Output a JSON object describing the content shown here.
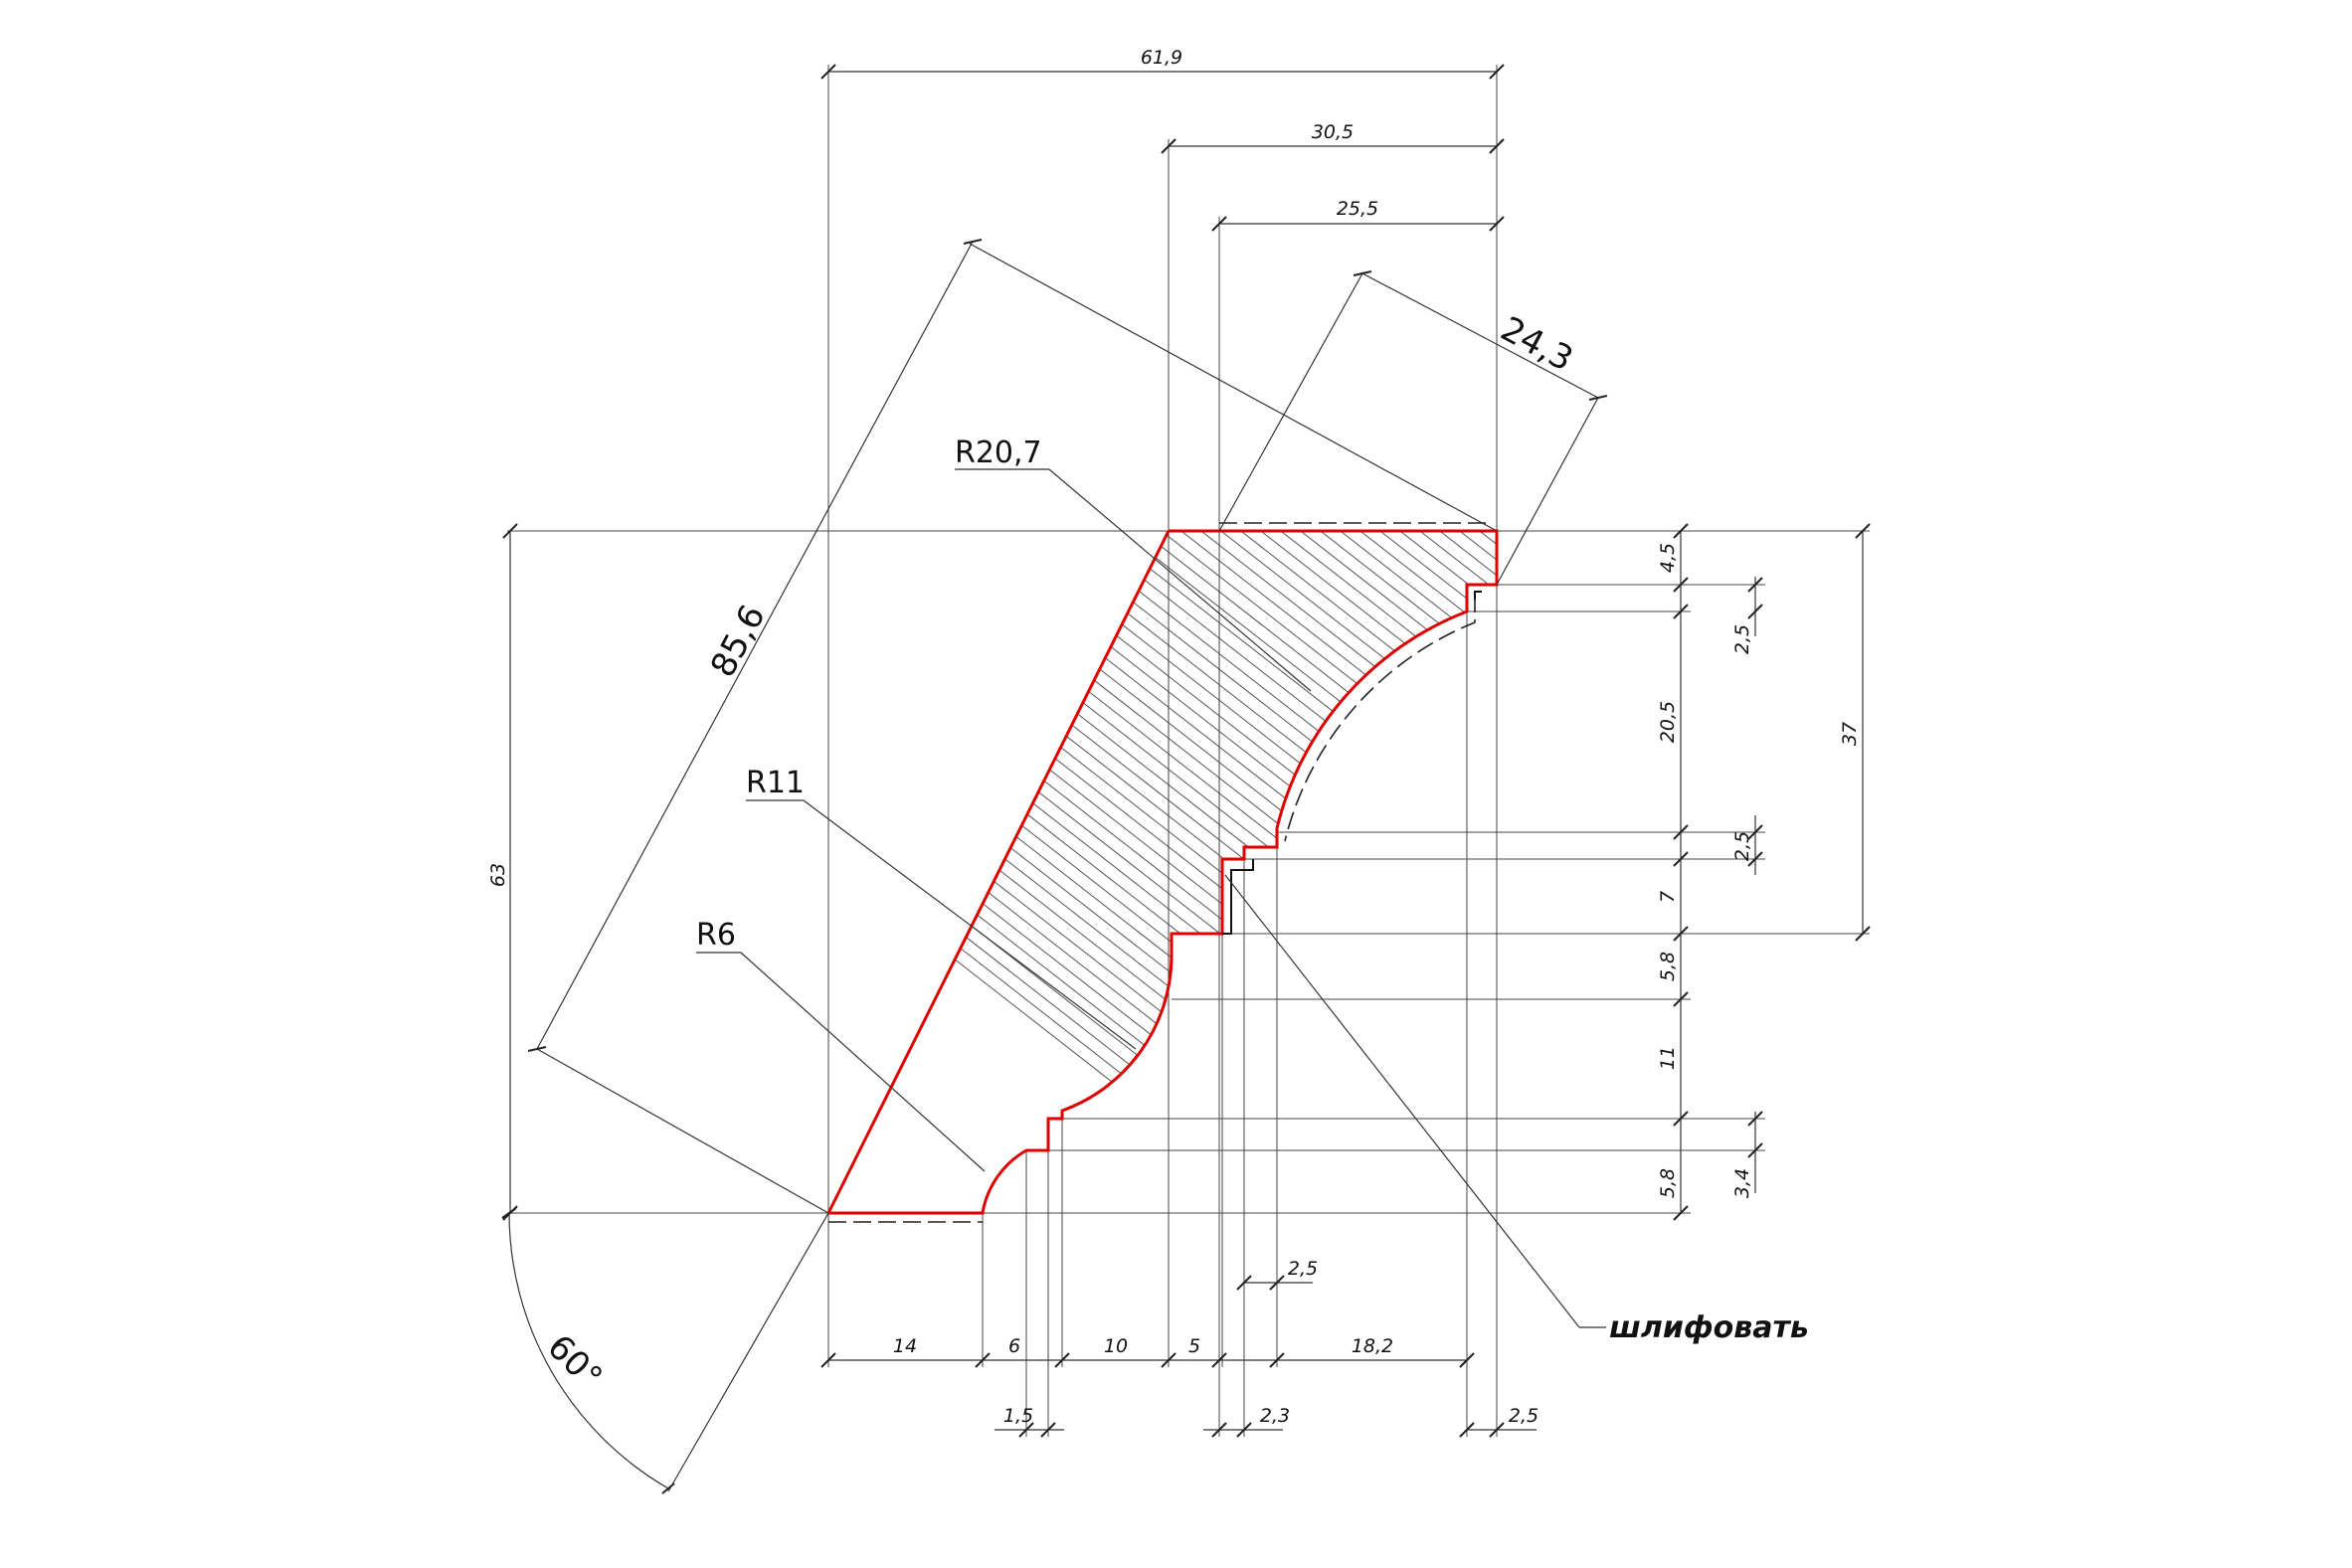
{
  "drawing": {
    "top_dims": [
      "61,9",
      "30,5",
      "25,5"
    ],
    "angled_dims": {
      "height": "24,3",
      "length": "85,6"
    },
    "radii": [
      "R20,7",
      "R11",
      "R6"
    ],
    "left_dim": "63",
    "right_dims_inner": [
      "4,5",
      "20,5",
      "7",
      "5,8",
      "11",
      "5,8"
    ],
    "right_dims_outer": [
      "2,5",
      "2,5",
      "3,4"
    ],
    "right_total": "37",
    "bottom_dims_row1": [
      "14",
      "6",
      "10",
      "5",
      "18,2"
    ],
    "bottom_dim_mid": "2,5",
    "bottom_dims_row2": [
      "1,5",
      "2,3",
      "2,5"
    ],
    "angle": "60°",
    "note": "шлифовать",
    "colors": {
      "profile": "#e00000",
      "lines": "#333333"
    }
  }
}
